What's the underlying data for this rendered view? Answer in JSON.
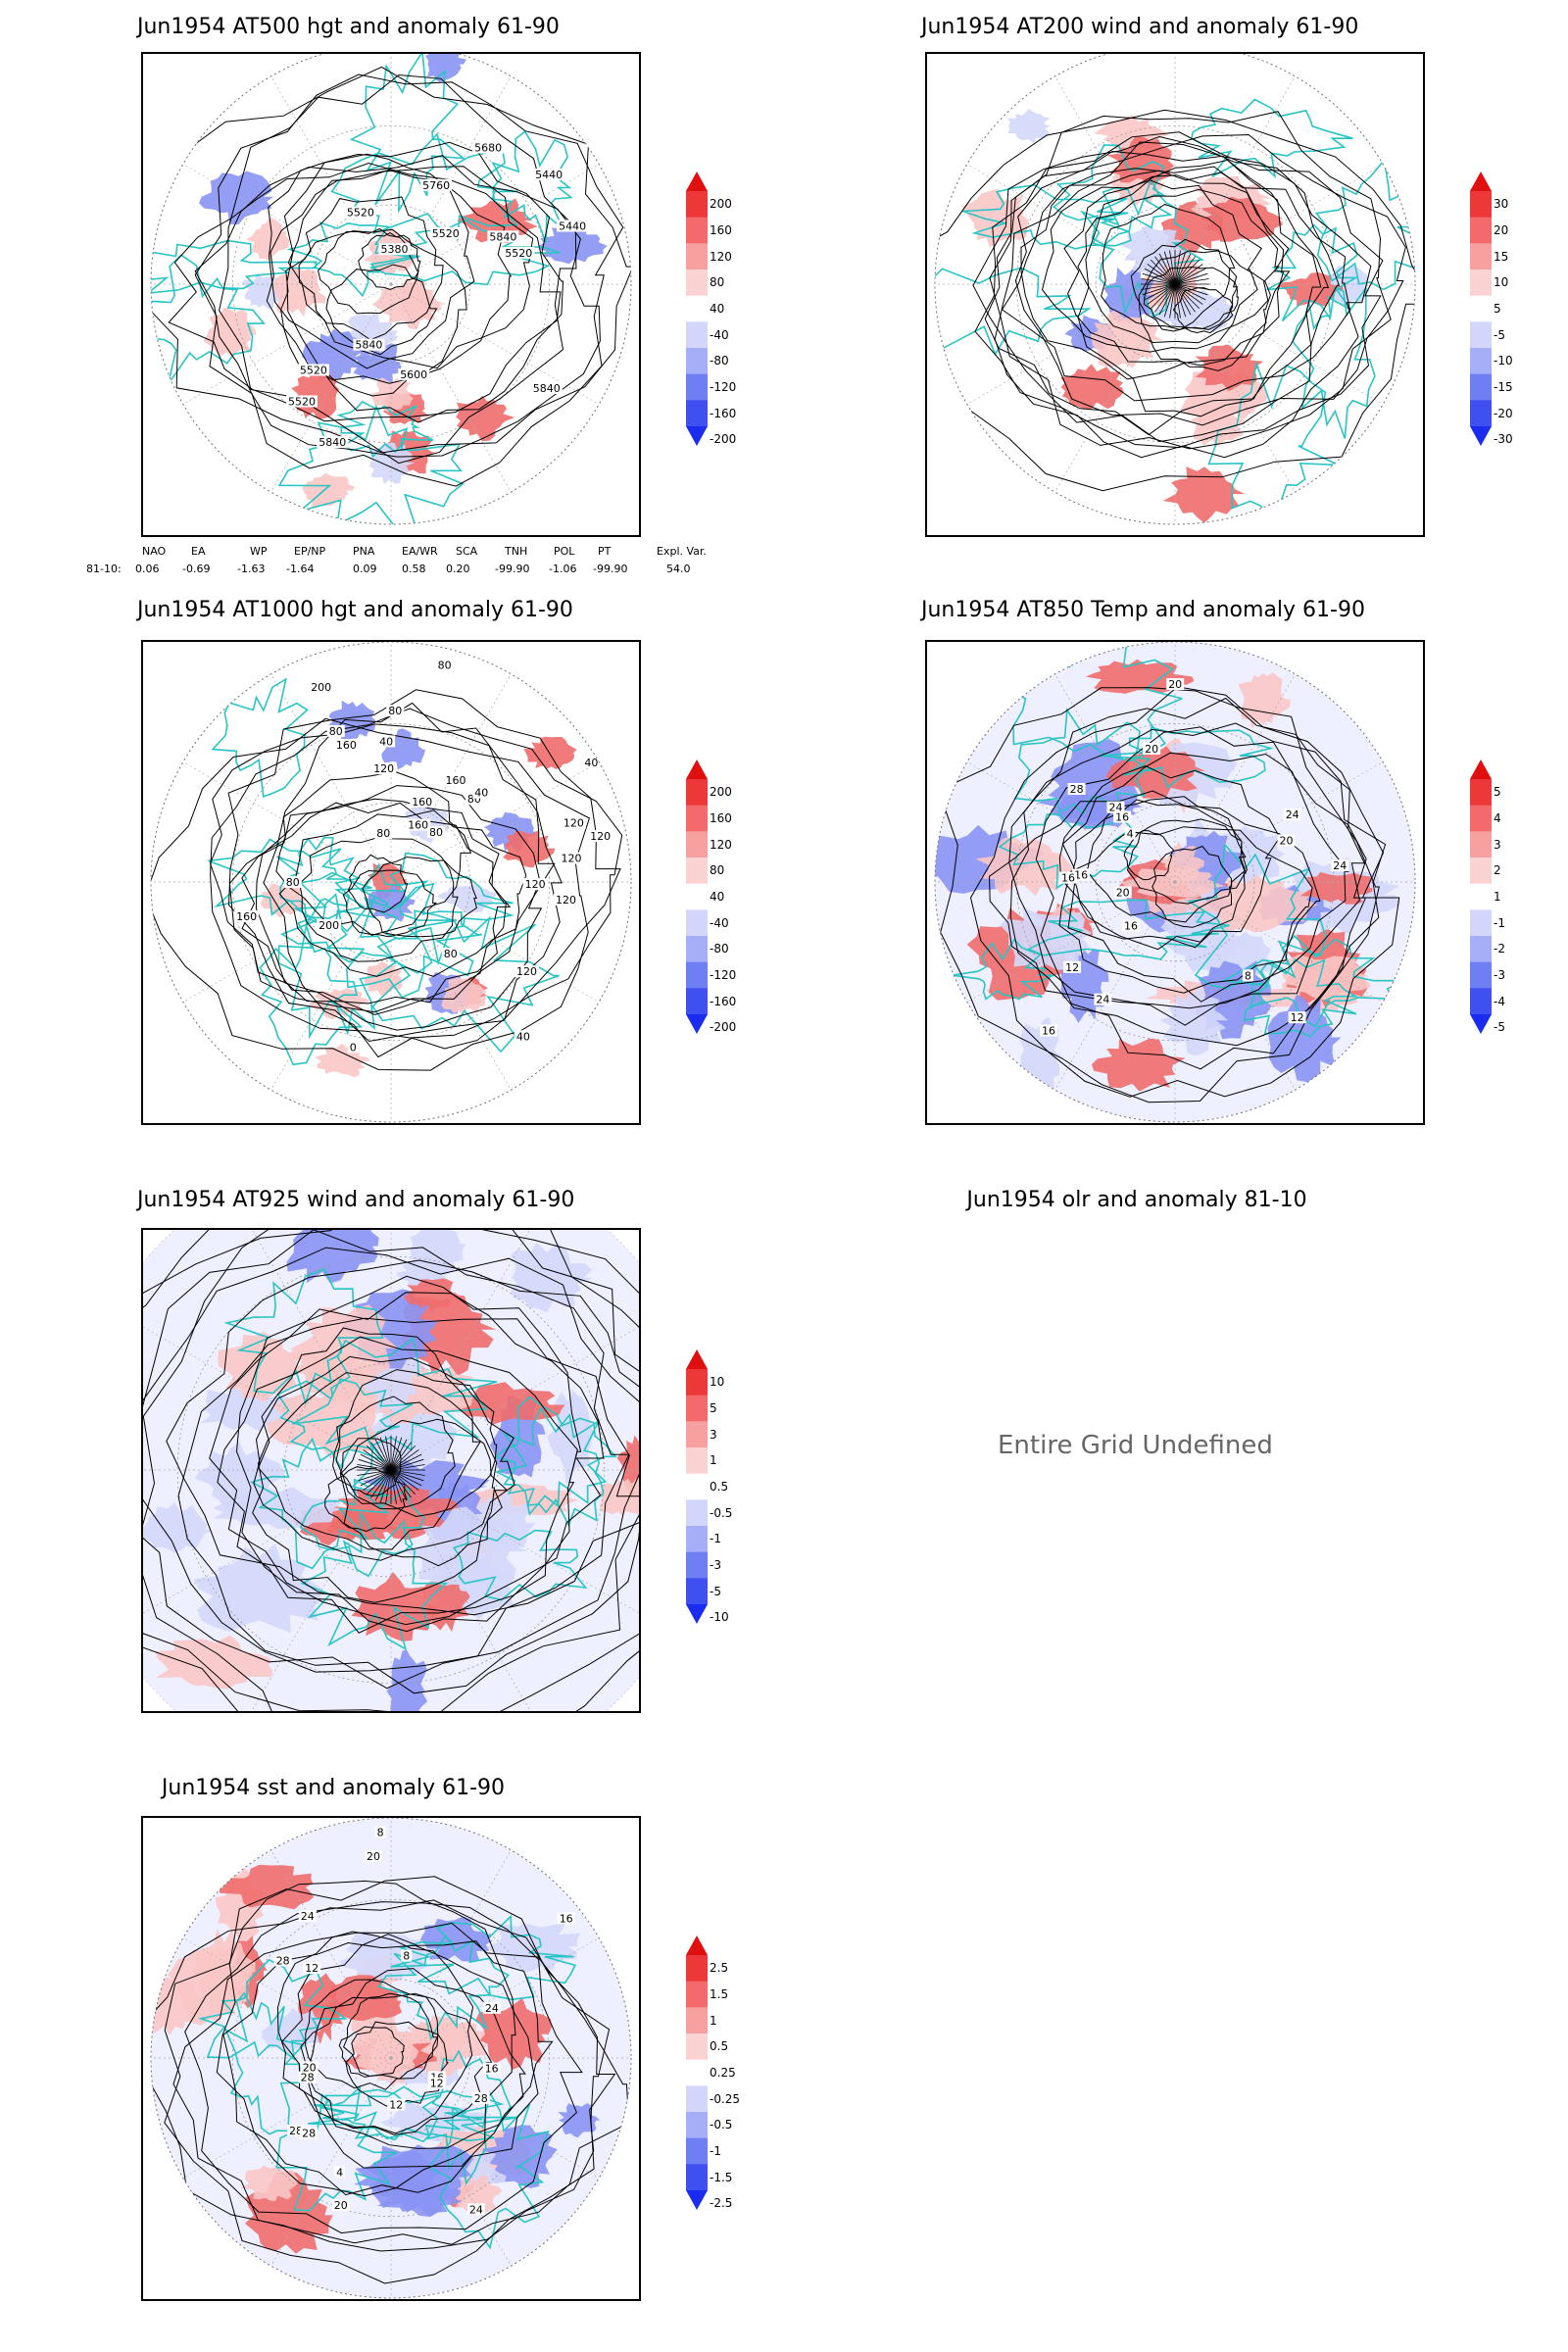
{
  "panels": [
    {
      "id": "at500",
      "title": "Jun1954 AT500 hgt and anomaly 61-90",
      "contour_labels": [
        "5840",
        "5840",
        "5520",
        "5520",
        "5520",
        "5440",
        "5520",
        "5380",
        "5440",
        "5520",
        "5600",
        "5680",
        "5760",
        "5840",
        "5840"
      ],
      "colorbar": [
        "200",
        "160",
        "120",
        "80",
        "40",
        "-40",
        "-80",
        "-120",
        "-160",
        "-200"
      ]
    },
    {
      "id": "at200",
      "title": "Jun1954 AT200 wind and anomaly 61-90",
      "colorbar": [
        "30",
        "20",
        "15",
        "10",
        "5",
        "-5",
        "-10",
        "-15",
        "-20",
        "-30"
      ]
    },
    {
      "id": "at1000",
      "title": "Jun1954 AT1000 hgt and anomaly 61-90",
      "contour_labels": [
        "80",
        "120",
        "160",
        "120",
        "200",
        "160",
        "80",
        "80",
        "120",
        "80",
        "40",
        "160",
        "120",
        "80",
        "0",
        "40",
        "80",
        "120",
        "160",
        "200",
        "160",
        "120",
        "120",
        "80",
        "40",
        "40",
        "80"
      ],
      "colorbar": [
        "200",
        "160",
        "120",
        "80",
        "40",
        "-40",
        "-80",
        "-120",
        "-160",
        "-200"
      ]
    },
    {
      "id": "at850",
      "title": "Jun1954 AT850 Temp and anomaly 61-90",
      "contour_labels": [
        "16",
        "16",
        "24",
        "20",
        "24",
        "20",
        "16",
        "12",
        "16",
        "20",
        "24",
        "28",
        "24",
        "20",
        "16",
        "4",
        "8",
        "12"
      ],
      "colorbar": [
        "5",
        "4",
        "3",
        "2",
        "1",
        "-1",
        "-2",
        "-3",
        "-4",
        "-5"
      ]
    },
    {
      "id": "at925",
      "title": "Jun1954 AT925 wind and anomaly 61-90",
      "colorbar": [
        "10",
        "5",
        "3",
        "1",
        "0.5",
        "-0.5",
        "-1",
        "-3",
        "-5",
        "-10"
      ]
    },
    {
      "id": "olr",
      "title": "Jun1954 olr and anomaly 81-10",
      "message": "Entire Grid Undefined"
    },
    {
      "id": "sst",
      "title": "Jun1954 sst and anomaly 61-90",
      "contour_labels": [
        "28",
        "28",
        "24",
        "24",
        "20",
        "20",
        "16",
        "16",
        "12",
        "12",
        "8",
        "28",
        "28",
        "28",
        "24",
        "20",
        "16",
        "12",
        "8",
        "4"
      ],
      "colorbar": [
        "2.5",
        "1.5",
        "1",
        "0.5",
        "0.25",
        "-0.25",
        "-0.5",
        "-1",
        "-1.5",
        "-2.5"
      ]
    }
  ],
  "teleconnections": {
    "headers": [
      "NAO",
      "EA",
      "WP",
      "EP/NP",
      "PNA",
      "EA/WR",
      "SCA",
      "TNH",
      "POL",
      "PT",
      "Expl. Var."
    ],
    "row_label": "81-10:",
    "values": [
      "0.06",
      "-0.69",
      "-1.63",
      "-1.64",
      "0.09",
      "0.58",
      "0.20",
      "-99.90",
      "-1.06",
      "-99.90",
      "54.0"
    ]
  },
  "colors": {
    "positive": "#e8262a",
    "negative": "#2b3cf0",
    "coast": "#29c4c4"
  }
}
